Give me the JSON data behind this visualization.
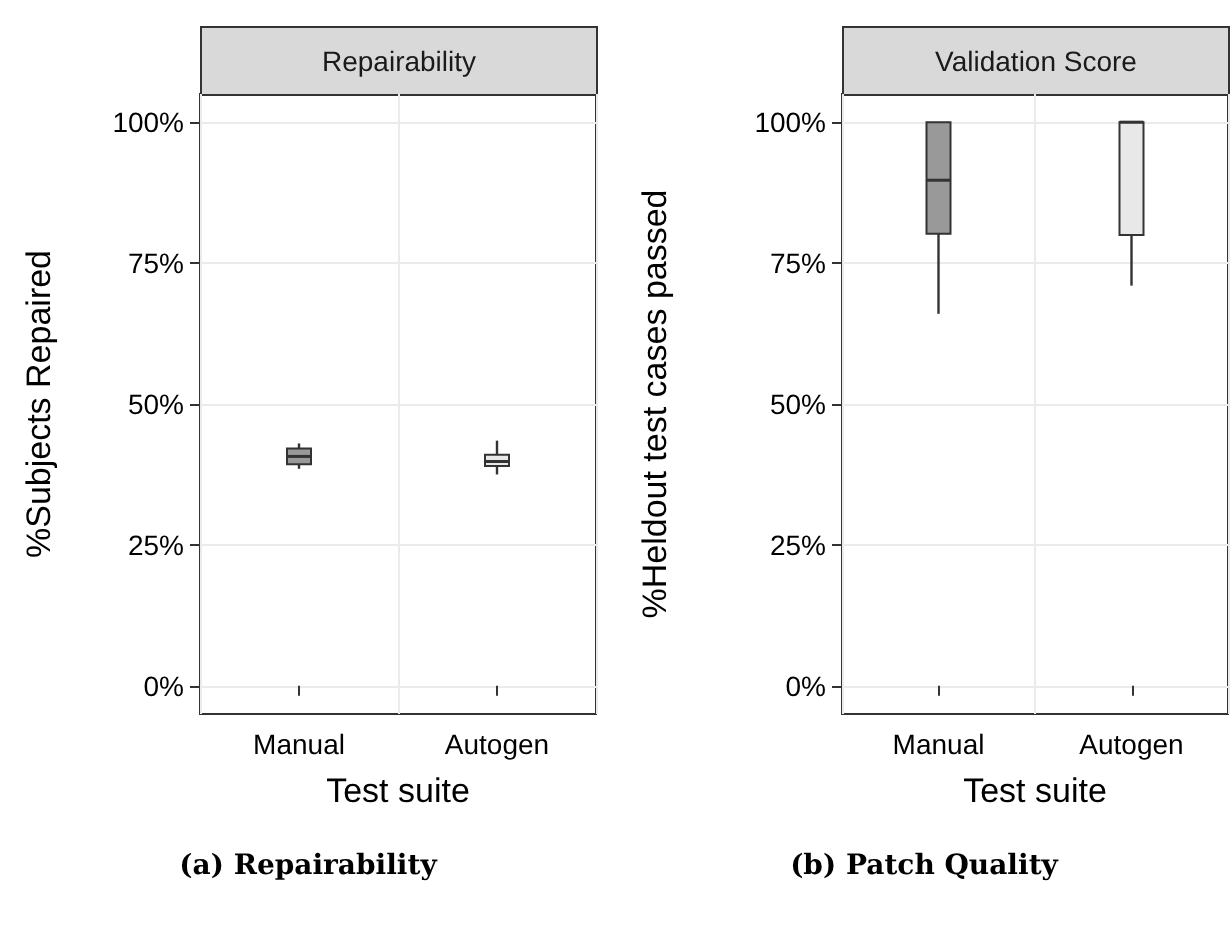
{
  "chart_data": [
    {
      "type": "box",
      "title": "Repairability",
      "categories": [
        "Manual",
        "Autogen"
      ],
      "xlabel": "Test suite",
      "ylabel": "%Subjects Repaired",
      "colors": [
        "#999999",
        "#e8e8e8"
      ],
      "boxes": [
        {
          "low": 38.5,
          "q1": 39.3,
          "median": 40.7,
          "q3": 42.1,
          "high": 43
        },
        {
          "low": 37.5,
          "q1": 39,
          "median": 39.8,
          "q3": 41,
          "high": 43.5
        }
      ],
      "ylim": [
        -5,
        105
      ],
      "yticks": [
        {
          "value": 0,
          "label": "0%"
        },
        {
          "value": 25,
          "label": "25%"
        },
        {
          "value": 50,
          "label": "50%"
        },
        {
          "value": 75,
          "label": "75%"
        },
        {
          "value": 100,
          "label": "100%"
        }
      ],
      "grid": true,
      "annotations": [
        "(a) Repairability"
      ]
    },
    {
      "type": "box",
      "title": "Validation Score",
      "categories": [
        "Manual",
        "Autogen"
      ],
      "xlabel": "Test suite",
      "ylabel": "%Heldout test cases passed",
      "colors": [
        "#999999",
        "#e8e8e8"
      ],
      "boxes": [
        {
          "low": 66,
          "q1": 80.2,
          "median": 89.7,
          "q3": 100,
          "high": 100
        },
        {
          "low": 71,
          "q1": 80,
          "median": 100,
          "q3": 100,
          "high": 100
        }
      ],
      "ylim": [
        -5,
        105
      ],
      "yticks": [
        {
          "value": 0,
          "label": "0%"
        },
        {
          "value": 25,
          "label": "25%"
        },
        {
          "value": 50,
          "label": "50%"
        },
        {
          "value": 75,
          "label": "75%"
        },
        {
          "value": 100,
          "label": "100%"
        }
      ],
      "grid": true,
      "annotations": [
        "(b) Patch Quality"
      ]
    }
  ]
}
